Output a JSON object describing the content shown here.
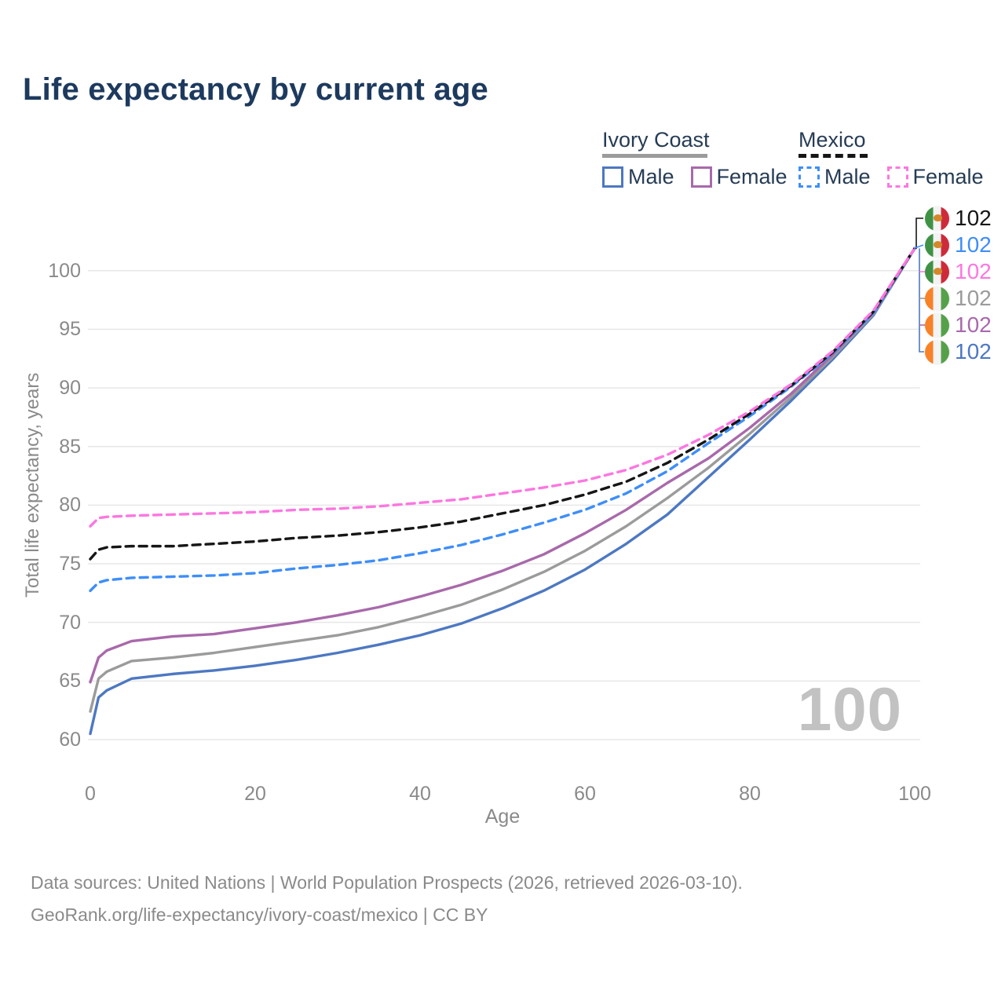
{
  "title": "Life expectancy by current age",
  "legend": {
    "groups": [
      {
        "country": "Ivory Coast",
        "line_style": "solid",
        "items": [
          {
            "label": "Male",
            "color_key": "ic_male"
          },
          {
            "label": "Female",
            "color_key": "ic_female"
          }
        ]
      },
      {
        "country": "Mexico",
        "line_style": "dashed",
        "items": [
          {
            "label": "Male",
            "color_key": "mx_male"
          },
          {
            "label": "Female",
            "color_key": "mx_female"
          }
        ]
      }
    ]
  },
  "chart_data": {
    "type": "line",
    "title": "Life expectancy by current age",
    "xlabel": "Age",
    "ylabel": "Total life expectancy, years",
    "xlim": [
      0,
      100
    ],
    "ylim": [
      60,
      102
    ],
    "x_ticks": [
      0,
      20,
      40,
      60,
      80,
      100
    ],
    "y_ticks": [
      60,
      65,
      70,
      75,
      80,
      85,
      90,
      95,
      100
    ],
    "grid": "horizontal",
    "legend_position": "top-right",
    "age_counter": "100",
    "x": [
      0,
      1,
      2,
      5,
      10,
      15,
      20,
      25,
      30,
      35,
      40,
      45,
      50,
      55,
      60,
      65,
      70,
      75,
      80,
      85,
      90,
      95,
      100
    ],
    "series": [
      {
        "id": "ic_male",
        "name": "Ivory Coast Male",
        "country": "Ivory Coast",
        "sex": "male",
        "style": "solid",
        "color_key": "ic_male",
        "values": [
          60.5,
          63.6,
          64.2,
          65.2,
          65.6,
          65.9,
          66.3,
          66.8,
          67.4,
          68.1,
          68.9,
          69.9,
          71.2,
          72.7,
          74.5,
          76.7,
          79.2,
          82.4,
          85.6,
          88.9,
          92.4,
          96.2,
          101.9
        ]
      },
      {
        "id": "ic_total",
        "name": "Ivory Coast Both sexes",
        "country": "Ivory Coast",
        "sex": "total",
        "style": "solid",
        "color_key": "ic_total",
        "values": [
          62.4,
          65.2,
          65.8,
          66.7,
          67.0,
          67.4,
          67.9,
          68.4,
          68.9,
          69.6,
          70.5,
          71.5,
          72.8,
          74.3,
          76.1,
          78.2,
          80.6,
          83.2,
          86.1,
          89.2,
          92.6,
          96.3,
          101.9
        ]
      },
      {
        "id": "ic_female",
        "name": "Ivory Coast Female",
        "country": "Ivory Coast",
        "sex": "female",
        "style": "solid",
        "color_key": "ic_female",
        "values": [
          64.9,
          67.0,
          67.6,
          68.4,
          68.8,
          69.0,
          69.5,
          70.0,
          70.6,
          71.3,
          72.2,
          73.2,
          74.4,
          75.8,
          77.6,
          79.6,
          81.9,
          84.0,
          86.6,
          89.5,
          92.8,
          96.4,
          101.9
        ]
      },
      {
        "id": "mx_male",
        "name": "Mexico Male",
        "country": "Mexico",
        "sex": "male",
        "style": "dashed",
        "color_key": "mx_male",
        "values": [
          72.7,
          73.4,
          73.6,
          73.8,
          73.9,
          74.0,
          74.2,
          74.6,
          74.9,
          75.3,
          75.9,
          76.6,
          77.5,
          78.5,
          79.6,
          81.0,
          82.9,
          85.3,
          87.6,
          90.1,
          92.9,
          96.4,
          101.9
        ]
      },
      {
        "id": "mx_total",
        "name": "Mexico Both sexes",
        "country": "Mexico",
        "sex": "total",
        "style": "dashed",
        "color_key": "mx_total",
        "values": [
          75.4,
          76.2,
          76.4,
          76.5,
          76.5,
          76.7,
          76.9,
          77.2,
          77.4,
          77.7,
          78.1,
          78.6,
          79.3,
          80.0,
          80.9,
          82.0,
          83.6,
          85.6,
          87.8,
          90.2,
          93.0,
          96.5,
          101.9
        ]
      },
      {
        "id": "mx_female",
        "name": "Mexico Female",
        "country": "Mexico",
        "sex": "female",
        "style": "dashed",
        "color_key": "mx_female",
        "values": [
          78.2,
          78.9,
          79.0,
          79.1,
          79.2,
          79.3,
          79.4,
          79.6,
          79.7,
          79.9,
          80.2,
          80.5,
          81.0,
          81.5,
          82.1,
          83.0,
          84.3,
          86.0,
          88.0,
          90.3,
          93.1,
          96.6,
          101.9
        ]
      }
    ],
    "end_labels": [
      {
        "flag": "mexico",
        "icon": "mexico-flag-icon",
        "value": "102",
        "color_key": "mx_total"
      },
      {
        "flag": "mexico",
        "icon": "mexico-flag-icon",
        "value": "102",
        "color_key": "mx_male"
      },
      {
        "flag": "mexico",
        "icon": "mexico-flag-icon",
        "value": "102",
        "color_key": "mx_female"
      },
      {
        "flag": "ivory-coast",
        "icon": "ivory-coast-flag-icon",
        "value": "102",
        "color_key": "ic_total"
      },
      {
        "flag": "ivory-coast",
        "icon": "ivory-coast-flag-icon",
        "value": "102",
        "color_key": "ic_female"
      },
      {
        "flag": "ivory-coast",
        "icon": "ivory-coast-flag-icon",
        "value": "102",
        "color_key": "ic_male"
      }
    ]
  },
  "footer": {
    "line1": "Data sources: United Nations | World Population Prospects (2026, retrieved 2026-03-10).",
    "line2": "GeoRank.org/life-expectancy/ivory-coast/mexico | CC BY"
  },
  "colors": {
    "title": "#1d3a5e",
    "legend_text": "#263c55",
    "axis_text": "#8a8a8a",
    "grid": "#e7e7e7",
    "watermark": "#c2c2c2",
    "footer_text": "#8a8a8a",
    "ic_male": "#4d78c2",
    "ic_total": "#9b9b9b",
    "ic_female": "#a869ab",
    "mx_male": "#3e8ef7",
    "mx_total": "#161616",
    "mx_female": "#fc77e0",
    "flag_green": "#3f9245",
    "flag_red": "#cd2b3a",
    "flag_emblem": "#d2892c",
    "flag_orange": "#f88227",
    "flag_green2": "#55a14a"
  }
}
